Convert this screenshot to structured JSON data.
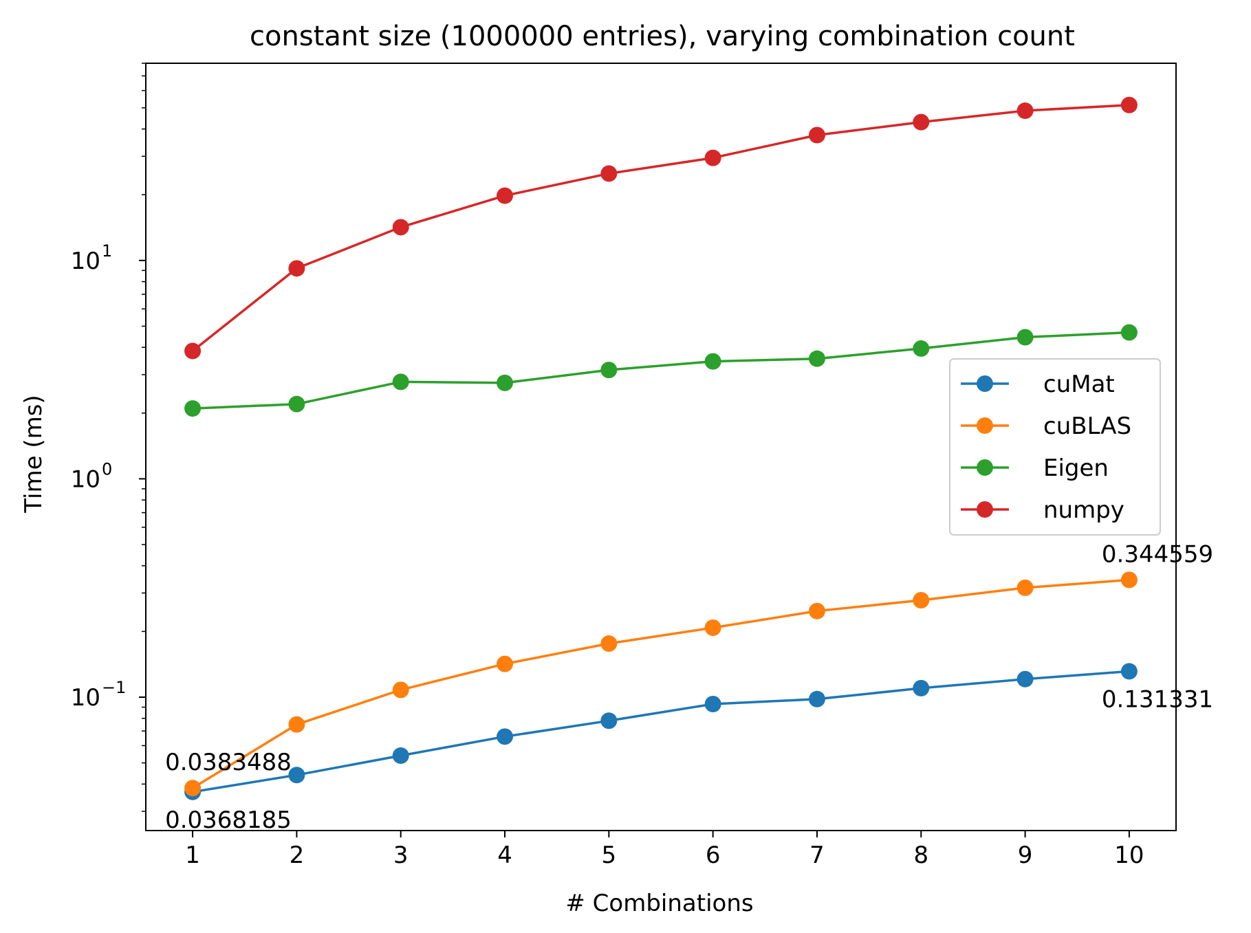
{
  "chart_data": {
    "type": "line",
    "title": "constant size (1000000 entries), varying combination count",
    "xlabel": "# Combinations",
    "ylabel": "Time (ms)",
    "yscale": "log",
    "x": [
      1,
      2,
      3,
      4,
      5,
      6,
      7,
      8,
      9,
      10
    ],
    "xlim": [
      0.55,
      10.45
    ],
    "ylim": [
      0.0245,
      80
    ],
    "y_ticks": [
      {
        "value": 0.1,
        "base": "10",
        "exp": "−1"
      },
      {
        "value": 1,
        "base": "10",
        "exp": "0"
      },
      {
        "value": 10,
        "base": "10",
        "exp": "1"
      }
    ],
    "series": [
      {
        "name": "cuMat",
        "color": "#1f77b4",
        "values": [
          0.0368185,
          0.044,
          0.054,
          0.066,
          0.078,
          0.093,
          0.098,
          0.11,
          0.121,
          0.131331
        ]
      },
      {
        "name": "cuBLAS",
        "color": "#ff7f0e",
        "values": [
          0.0383488,
          0.075,
          0.108,
          0.142,
          0.176,
          0.208,
          0.248,
          0.278,
          0.317,
          0.344559
        ]
      },
      {
        "name": "Eigen",
        "color": "#2ca02c",
        "values": [
          2.1,
          2.2,
          2.78,
          2.75,
          3.15,
          3.45,
          3.55,
          3.95,
          4.45,
          4.68
        ]
      },
      {
        "name": "numpy",
        "color": "#d62728",
        "values": [
          3.85,
          9.2,
          14.2,
          19.8,
          25,
          29.5,
          37.5,
          43,
          48.5,
          51.5
        ]
      }
    ],
    "annotations": [
      {
        "text": "0.0383488",
        "x": 1,
        "y": 0.0383488,
        "placement": "above"
      },
      {
        "text": "0.0368185",
        "x": 1,
        "y": 0.0368185,
        "placement": "below"
      },
      {
        "text": "0.344559",
        "x": 10,
        "y": 0.344559,
        "placement": "above"
      },
      {
        "text": "0.131331",
        "x": 10,
        "y": 0.131331,
        "placement": "below"
      }
    ],
    "legend": {
      "placement": "center-right"
    },
    "grid": false
  }
}
